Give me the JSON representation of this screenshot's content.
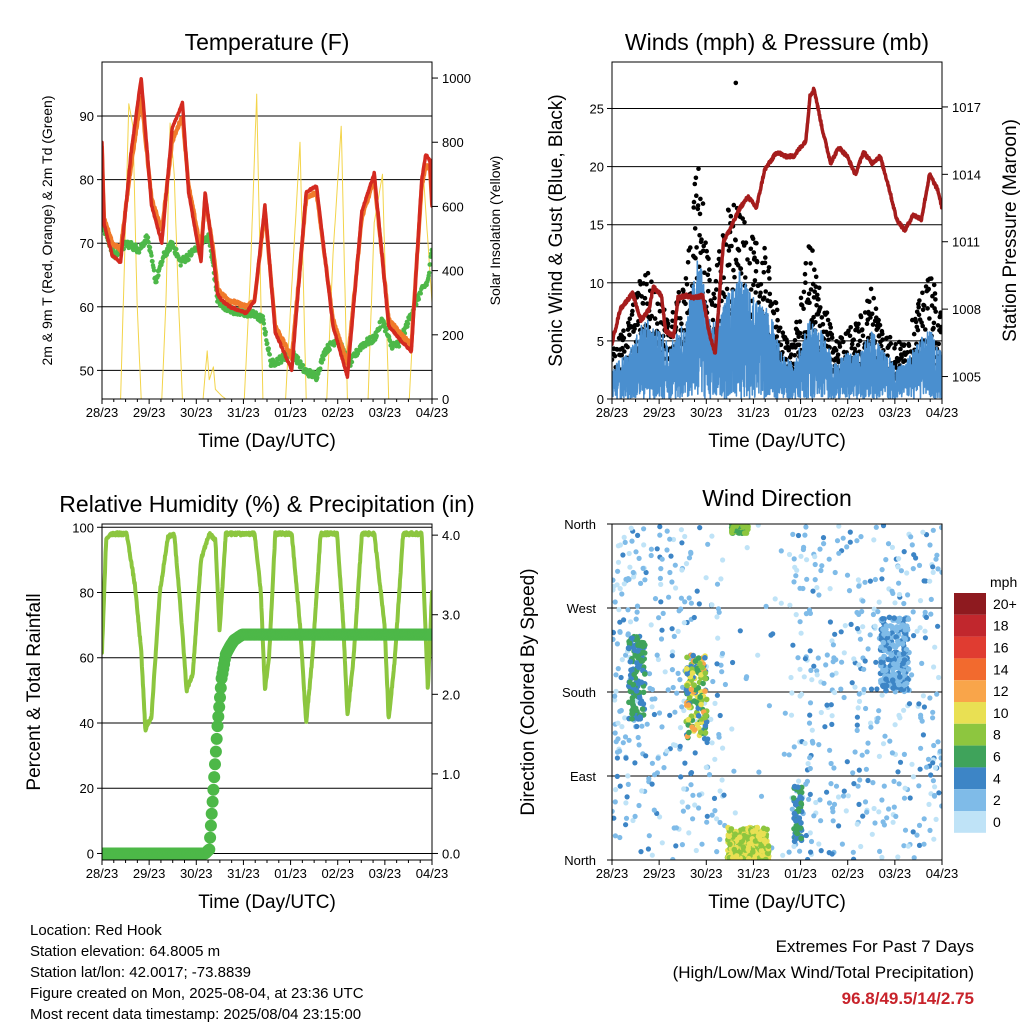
{
  "x_ticks": [
    "28/23",
    "29/23",
    "30/23",
    "31/23",
    "01/23",
    "02/23",
    "03/23",
    "04/23"
  ],
  "x_label": "Time (Day/UTC)",
  "chart_data": [
    {
      "type": "line",
      "title": "Temperature (F)",
      "ylabel": "2m & 9m T (Red, Orange) & 2m Td (Green)",
      "ylabel_right": "Solar Insolation (Yellow)",
      "xlabel": "Time (Day/UTC)",
      "x_ticks": [
        "28/23",
        "29/23",
        "30/23",
        "31/23",
        "01/23",
        "02/23",
        "03/23",
        "04/23"
      ],
      "ylim": [
        45.5,
        98.5
      ],
      "yticks": [
        50,
        60,
        70,
        80,
        90
      ],
      "ylim_right": [
        0,
        1050
      ],
      "yticks_right": [
        0,
        200,
        400,
        600,
        800,
        1000
      ],
      "grid": true,
      "colors": {
        "t2m": "#d42a20",
        "t9m": "#f07a2a",
        "td": "#4db848",
        "solar": "#f3d44a"
      },
      "series": [
        {
          "name": "2m T",
          "x": [
            0,
            0.05,
            0.25,
            0.45,
            0.7,
            0.95,
            1.2,
            1.45,
            1.7,
            1.95,
            2.1,
            2.4,
            2.5,
            2.7,
            2.8,
            2.9,
            3.1,
            3.5,
            3.7,
            3.95,
            4.2,
            4.6,
            4.95,
            5.2,
            5.6,
            5.95,
            6.3,
            6.6,
            6.95,
            7.2,
            7.5,
            7.75,
            7.85,
            7.95,
            8.0
          ],
          "y": [
            86,
            73,
            68,
            67,
            84,
            96,
            76,
            70,
            88,
            92,
            78,
            67,
            78,
            68,
            62,
            61,
            60,
            59,
            61,
            76,
            56,
            50,
            78,
            79,
            57,
            49,
            75,
            81,
            57,
            55,
            53,
            80,
            84,
            83,
            76
          ]
        },
        {
          "name": "9m T",
          "x": [
            0,
            0.05,
            0.25,
            0.45,
            0.7,
            0.95,
            1.2,
            1.45,
            1.7,
            1.95,
            2.1,
            2.4,
            2.5,
            2.7,
            2.8,
            2.9,
            3.1,
            3.5,
            3.7,
            3.95,
            4.2,
            4.6,
            4.95,
            5.2,
            5.6,
            5.95,
            6.3,
            6.6,
            6.95,
            7.2,
            7.5,
            7.75,
            7.85,
            7.95,
            8.0
          ],
          "y": [
            85,
            74,
            70,
            69,
            82,
            93,
            77,
            72,
            86,
            90,
            79,
            69,
            77,
            69,
            63,
            62,
            61,
            60,
            61,
            75,
            57,
            52,
            77,
            78,
            58,
            51,
            74,
            80,
            58,
            56,
            54,
            79,
            82,
            82,
            76
          ]
        },
        {
          "name": "2m Td",
          "x": [
            0,
            0.3,
            0.6,
            0.9,
            1.0,
            1.1,
            1.3,
            1.5,
            1.7,
            1.9,
            2.1,
            2.4,
            2.6,
            2.8,
            3.0,
            3.3,
            3.6,
            3.9,
            4.1,
            4.4,
            4.6,
            4.9,
            5.2,
            5.4,
            5.7,
            6.0,
            6.3,
            6.6,
            6.8,
            7.0,
            7.2,
            7.5,
            7.7,
            7.9,
            8.0
          ],
          "y": [
            73,
            68,
            70,
            69,
            70,
            71,
            64,
            68,
            70,
            67,
            68,
            70,
            71,
            61,
            60,
            59,
            59,
            58,
            51,
            52,
            53,
            50,
            49,
            53,
            55,
            51,
            54,
            55,
            58,
            54,
            54,
            59,
            62,
            64,
            69
          ]
        },
        {
          "name": "Solar Insolation",
          "x": [
            0,
            0.45,
            0.55,
            0.65,
            0.75,
            0.85,
            0.95,
            1.45,
            1.55,
            1.65,
            1.75,
            1.85,
            1.95,
            2.45,
            2.55,
            2.6,
            2.7,
            2.75,
            2.9,
            3.0,
            3.45,
            3.6,
            3.75,
            3.9,
            4.45,
            4.6,
            4.8,
            4.95,
            5.45,
            5.6,
            5.8,
            5.95,
            6.45,
            6.6,
            6.8,
            6.95,
            7.45,
            7.65,
            7.8,
            8.0
          ],
          "y_right": [
            0,
            0,
            450,
            920,
            850,
            300,
            0,
            0,
            300,
            860,
            700,
            320,
            0,
            0,
            150,
            60,
            100,
            30,
            10,
            0,
            0,
            400,
            950,
            0,
            0,
            350,
            800,
            0,
            0,
            450,
            850,
            0,
            0,
            550,
            700,
            0,
            0,
            500,
            680,
            300
          ]
        }
      ]
    },
    {
      "type": "scatter",
      "title": "Winds (mph) & Pressure (mb)",
      "ylabel": "Sonic Wind & Gust (Blue, Black)",
      "ylabel_right": "Station Pressure (Maroon)",
      "xlabel": "Time (Day/UTC)",
      "x_ticks": [
        "28/23",
        "29/23",
        "30/23",
        "31/23",
        "01/23",
        "02/23",
        "03/23",
        "04/23"
      ],
      "ylim": [
        0,
        29
      ],
      "yticks": [
        0,
        5,
        10,
        15,
        20,
        25
      ],
      "ylim_right": [
        1004.0,
        1019.0
      ],
      "yticks_right": [
        1005,
        1008,
        1011,
        1014,
        1017
      ],
      "grid": true,
      "colors": {
        "wind": "#4a8fcf",
        "gust": "#000000",
        "pressure": "#a51c1c"
      },
      "series": [
        {
          "name": "Sonic Wind",
          "envelope_x": [
            0,
            0.4,
            0.8,
            1.1,
            1.4,
            1.8,
            2.1,
            2.4,
            2.6,
            2.9,
            3.1,
            3.4,
            3.7,
            3.9,
            4.1,
            4.4,
            4.8,
            5.1,
            5.4,
            5.7,
            6.0,
            6.3,
            6.6,
            6.9,
            7.1,
            7.4,
            7.7,
            7.9,
            8.0
          ],
          "envelope_y": [
            3,
            4,
            7,
            6,
            5,
            7,
            13,
            6,
            8,
            10,
            11,
            9,
            8,
            7,
            4,
            3,
            7,
            6,
            3,
            4,
            4,
            6,
            4,
            3,
            3,
            5,
            6,
            5,
            4
          ]
        },
        {
          "name": "Gust",
          "envelope_x": [
            0,
            0.4,
            0.8,
            1.1,
            1.4,
            1.8,
            2.1,
            2.4,
            2.6,
            2.9,
            3.1,
            3.4,
            3.7,
            3.9,
            4.1,
            4.4,
            4.8,
            5.1,
            5.4,
            5.7,
            6.0,
            6.3,
            6.6,
            6.9,
            7.1,
            7.4,
            7.7,
            7.9,
            8.0
          ],
          "envelope_y": [
            4,
            7,
            12,
            9,
            7,
            11,
            22,
            10,
            13,
            18,
            16,
            14,
            13,
            10,
            6,
            5,
            14,
            9,
            5,
            6,
            7,
            10,
            6,
            5,
            5,
            8,
            11,
            9,
            7
          ],
          "peak": {
            "x": 3.0,
            "y": 27.2
          }
        },
        {
          "name": "Station Pressure",
          "x": [
            0,
            0.2,
            0.5,
            0.7,
            0.9,
            1.0,
            1.2,
            1.3,
            1.5,
            1.6,
            1.8,
            2.0,
            2.2,
            2.35,
            2.5,
            2.7,
            2.9,
            3.1,
            3.3,
            3.5,
            3.7,
            4.0,
            4.2,
            4.4,
            4.7,
            4.8,
            4.9,
            5.1,
            5.3,
            5.5,
            5.7,
            5.9,
            6.1,
            6.3,
            6.5,
            6.7,
            6.9,
            7.1,
            7.3,
            7.5,
            7.7,
            7.9,
            8.0
          ],
          "y_right": [
            1006.5,
            1008.0,
            1008.7,
            1007.5,
            1008.0,
            1009.0,
            1008.6,
            1007.0,
            1006.8,
            1008.5,
            1008.6,
            1008.5,
            1008.6,
            1007.0,
            1006.0,
            1011.0,
            1011.7,
            1012.5,
            1013.0,
            1012.5,
            1014.2,
            1015.0,
            1014.8,
            1014.8,
            1015.5,
            1017.5,
            1017.8,
            1016.0,
            1014.5,
            1015.2,
            1014.8,
            1014.0,
            1015.0,
            1014.5,
            1014.8,
            1013.5,
            1012.0,
            1011.5,
            1012.2,
            1012.0,
            1014.0,
            1013.3,
            1012.5
          ]
        }
      ]
    },
    {
      "type": "line",
      "title": "Relative Humidity (%) & Precipitation (in)",
      "ylabel": "Percent & Total Rainfall",
      "xlabel": "Time (Day/UTC)",
      "x_ticks": [
        "28/23",
        "29/23",
        "30/23",
        "31/23",
        "01/23",
        "02/23",
        "03/23",
        "04/23"
      ],
      "ylim": [
        -2,
        101
      ],
      "yticks": [
        0,
        20,
        40,
        60,
        80,
        100
      ],
      "ylim_right": [
        -0.082,
        4.14
      ],
      "yticks_right": [
        "0.0",
        "1.0",
        "2.0",
        "3.0",
        "4.0"
      ],
      "grid": true,
      "colors": {
        "rh": "#8cc63f",
        "precip": "#4db848"
      },
      "series": [
        {
          "name": "Relative Humidity",
          "x": [
            0,
            0.1,
            0.2,
            0.4,
            0.6,
            0.8,
            0.95,
            1.05,
            1.2,
            1.4,
            1.6,
            1.75,
            1.9,
            2.05,
            2.2,
            2.4,
            2.6,
            2.75,
            2.85,
            3.0,
            3.2,
            3.5,
            3.7,
            3.85,
            3.95,
            4.05,
            4.2,
            4.4,
            4.6,
            4.8,
            4.95,
            5.1,
            5.3,
            5.5,
            5.7,
            5.85,
            5.95,
            6.1,
            6.3,
            6.6,
            6.85,
            6.95,
            7.1,
            7.3,
            7.6,
            7.75,
            7.9,
            8.0
          ],
          "y": [
            62,
            96,
            98,
            98,
            98,
            82,
            62,
            38,
            42,
            80,
            97,
            98,
            76,
            50,
            55,
            90,
            98,
            96,
            68,
            98,
            98,
            98,
            98,
            80,
            50,
            60,
            98,
            98,
            98,
            70,
            40,
            60,
            98,
            98,
            98,
            70,
            42,
            60,
            98,
            98,
            70,
            41,
            60,
            98,
            98,
            98,
            50,
            80
          ]
        },
        {
          "name": "Total Precipitation",
          "x": [
            0,
            2.5,
            2.6,
            2.7,
            2.8,
            2.9,
            3.0,
            3.1,
            3.2,
            3.4,
            8.0
          ],
          "y_right": [
            0.0,
            0.0,
            0.05,
            0.8,
            1.6,
            2.2,
            2.5,
            2.6,
            2.68,
            2.75,
            2.75
          ]
        }
      ]
    },
    {
      "type": "scatter",
      "title": "Wind Direction",
      "ylabel": "Direction (Colored By Speed)",
      "xlabel": "Time (Day/UTC)",
      "x_ticks": [
        "28/23",
        "29/23",
        "30/23",
        "31/23",
        "01/23",
        "02/23",
        "03/23",
        "04/23"
      ],
      "yticks": [
        "North",
        "East",
        "South",
        "West",
        "North"
      ],
      "ylim": [
        0,
        360
      ],
      "grid": true,
      "legend": {
        "title": "mph",
        "labels": [
          "20+",
          "18",
          "16",
          "14",
          "12",
          "10",
          "8",
          "6",
          "4",
          "2",
          "0"
        ],
        "placement": "right",
        "colors": [
          "#8e1a1f",
          "#c1272d",
          "#e03c31",
          "#f26a2e",
          "#f9a54a",
          "#e9e053",
          "#8dc63f",
          "#3fa35b",
          "#3d85c6",
          "#7fbbe8",
          "#bfe3f7"
        ]
      },
      "clusters": [
        {
          "x": [
            2.8,
            3.8
          ],
          "dir": [
            0,
            35
          ],
          "speed": "8-10"
        },
        {
          "x": [
            4.4,
            4.6
          ],
          "dir": [
            20,
            80
          ],
          "speed": "4-6"
        },
        {
          "x": [
            0.4,
            0.8
          ],
          "dir": [
            150,
            240
          ],
          "speed": "4-6"
        },
        {
          "x": [
            1.8,
            2.3
          ],
          "dir": [
            130,
            220
          ],
          "speed": "4-12"
        },
        {
          "x": [
            2.9,
            3.3
          ],
          "dir": [
            350,
            360
          ],
          "speed": "6-8"
        },
        {
          "x": [
            6.5,
            7.2
          ],
          "dir": [
            180,
            260
          ],
          "speed": "2-4"
        }
      ]
    }
  ],
  "info": {
    "location": "Location: Red Hook",
    "elevation": "Station elevation: 64.8005 m",
    "latlon": "Station lat/lon: 42.0017; -73.8839",
    "created": "Figure created on Mon, 2025-08-04, at 23:36 UTC",
    "recent": "Most recent data timestamp: 2025/08/04 23:15:00"
  },
  "extremes": {
    "line1": "Extremes For Past 7 Days",
    "line2": "(High/Low/Max Wind/Total Precipitation)",
    "value": "96.8/49.5/14/2.75"
  }
}
